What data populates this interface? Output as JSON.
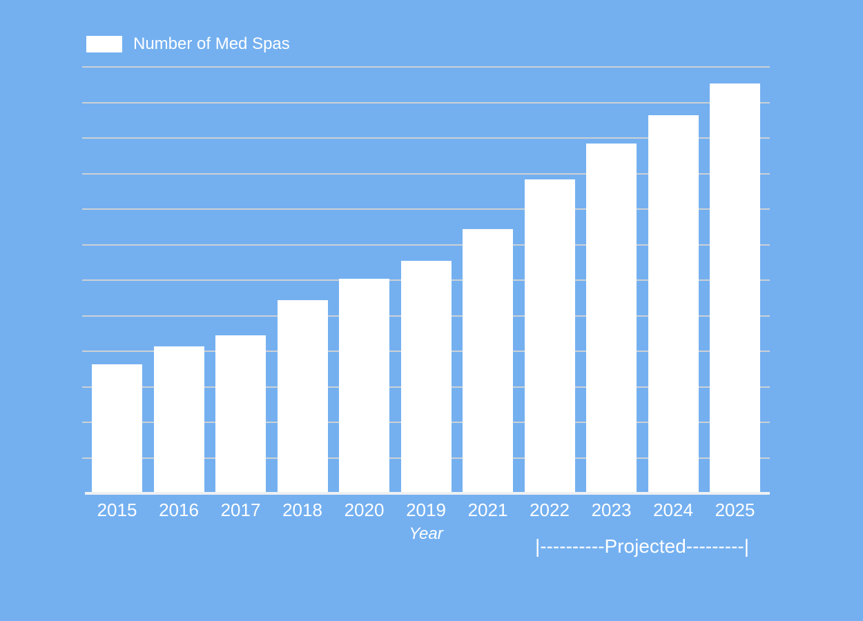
{
  "page": {
    "background_color": "#74b0f0",
    "text_color": "#ffffff"
  },
  "legend": {
    "label": "Number of Med Spas",
    "swatch_color": "#ffffff",
    "position": "top-left"
  },
  "chart_data": {
    "type": "bar",
    "title": "",
    "categories": [
      "2015",
      "2016",
      "2017",
      "2018",
      "2020",
      "2019",
      "2021",
      "2022",
      "2023",
      "2024",
      "2025"
    ],
    "series": [
      {
        "name": "Number of Med Spas",
        "values": [
          3.6,
          4.1,
          4.4,
          5.4,
          6.0,
          6.5,
          7.4,
          8.8,
          9.8,
          10.6,
          11.5
        ]
      }
    ],
    "xlabel": "Year",
    "ylabel": "",
    "ylim": [
      0,
      12
    ],
    "gridline_interval": 1,
    "y_axis_labels_visible": false,
    "grid": true,
    "legend_position": "top-left",
    "annotation": {
      "text": "|----------Projected---------|",
      "span_categories": [
        "2022",
        "2025"
      ]
    },
    "colors": {
      "bar": "#ffffff",
      "gridline": "#cdd1d5",
      "axis_line": "#eef0f2",
      "background": "#74b0f0",
      "text": "#ffffff"
    }
  }
}
